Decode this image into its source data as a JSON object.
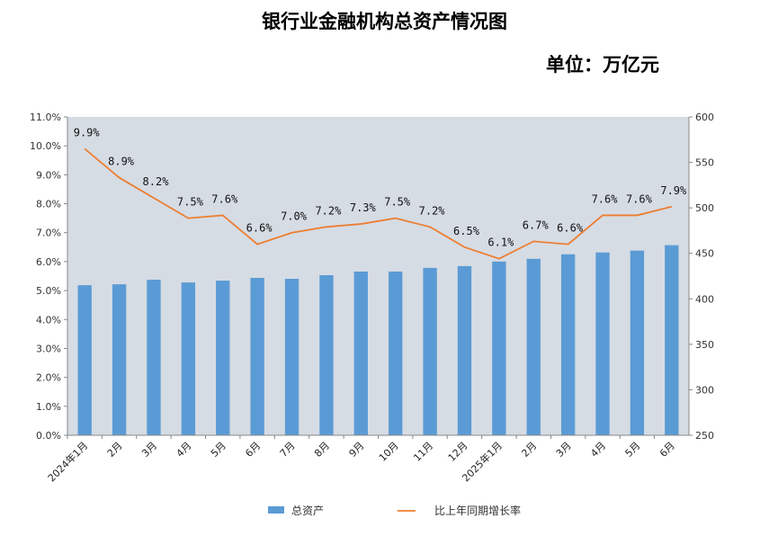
{
  "chart_data": {
    "type": "bar",
    "title": "银行业金融机构总资产情况图",
    "unit_label": "单位：万亿元",
    "categories": [
      "2024年1月",
      "2月",
      "3月",
      "4月",
      "5月",
      "6月",
      "7月",
      "8月",
      "9月",
      "10月",
      "11月",
      "12月",
      "2025年1月",
      "2月",
      "3月",
      "4月",
      "5月",
      "6月"
    ],
    "series": [
      {
        "name": "总资产",
        "type": "bar",
        "axis": "right",
        "color": "#5b9bd5",
        "values": [
          415,
          416,
          421,
          418,
          420,
          423,
          422,
          426,
          430,
          430,
          434,
          436,
          441,
          444,
          449,
          451,
          453,
          459
        ]
      },
      {
        "name": "比上年同期增长率",
        "type": "line",
        "axis": "left",
        "color": "#ed7d31",
        "values": [
          9.9,
          8.9,
          8.2,
          7.5,
          7.6,
          6.6,
          7.0,
          7.2,
          7.3,
          7.5,
          7.2,
          6.5,
          6.1,
          6.7,
          6.6,
          7.6,
          7.6,
          7.9
        ],
        "labels": [
          "9.9%",
          "8.9%",
          "8.2%",
          "7.5%",
          "7.6%",
          "6.6%",
          "7.0%",
          "7.2%",
          "7.3%",
          "7.5%",
          "7.2%",
          "6.5%",
          "6.1%",
          "6.7%",
          "6.6%",
          "7.6%",
          "7.6%",
          "7.9%"
        ]
      }
    ],
    "y_left": {
      "lim": [
        0,
        11
      ],
      "ticks": [
        0,
        1,
        2,
        3,
        4,
        5,
        6,
        7,
        8,
        9,
        10,
        11
      ],
      "tick_labels": [
        "0.0%",
        "1.0%",
        "2.0%",
        "3.0%",
        "4.0%",
        "5.0%",
        "6.0%",
        "7.0%",
        "8.0%",
        "9.0%",
        "10.0%",
        "11.0%"
      ]
    },
    "y_right": {
      "lim": [
        250,
        600
      ],
      "ticks": [
        250,
        300,
        350,
        400,
        450,
        500,
        550,
        600
      ],
      "tick_labels": [
        "250",
        "300",
        "350",
        "400",
        "450",
        "500",
        "550",
        "600"
      ]
    },
    "grid": false,
    "legend": "bottom",
    "plot_background": "#d6dce4"
  }
}
